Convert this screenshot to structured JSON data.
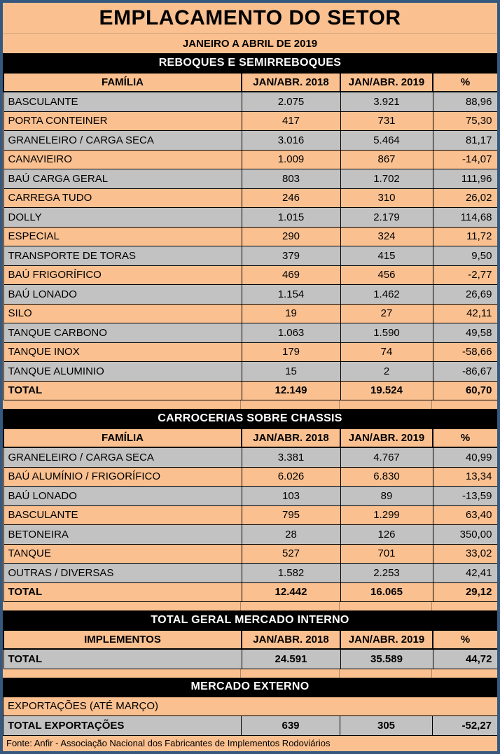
{
  "page": {
    "title": "EMPLACAMENTO DO SETOR",
    "subtitle": "JANEIRO A ABRIL DE 2019",
    "footer": "Fonte: Anfir - Associação Nacional dos Fabricantes de Implementos Rodoviários"
  },
  "colors": {
    "peach": "#FAC090",
    "gray": "#C2C2C2",
    "frame_border": "#35587F",
    "section_header_bg": "#000000",
    "section_header_text": "#FFFFFF",
    "grid_line": "#000000"
  },
  "sections": [
    {
      "title": "REBOQUES E SEMIRREBOQUES",
      "first_column_header": "FAMÍLIA",
      "col_headers": [
        "JAN/ABR. 2018",
        "JAN/ABR. 2019",
        "%"
      ],
      "rows": [
        [
          "BASCULANTE",
          "2.075",
          "3.921",
          "88,96"
        ],
        [
          "PORTA CONTEINER",
          "417",
          "731",
          "75,30"
        ],
        [
          "GRANELEIRO / CARGA SECA",
          "3.016",
          "5.464",
          "81,17"
        ],
        [
          "CANAVIEIRO",
          "1.009",
          "867",
          "-14,07"
        ],
        [
          "BAÚ CARGA GERAL",
          "803",
          "1.702",
          "111,96"
        ],
        [
          "CARREGA TUDO",
          "246",
          "310",
          "26,02"
        ],
        [
          "DOLLY",
          "1.015",
          "2.179",
          "114,68"
        ],
        [
          "ESPECIAL",
          "290",
          "324",
          "11,72"
        ],
        [
          "TRANSPORTE DE TORAS",
          "379",
          "415",
          "9,50"
        ],
        [
          "BAÚ FRIGORÍFICO",
          "469",
          "456",
          "-2,77"
        ],
        [
          "BAÚ LONADO",
          "1.154",
          "1.462",
          "26,69"
        ],
        [
          "SILO",
          "19",
          "27",
          "42,11"
        ],
        [
          "TANQUE CARBONO",
          "1.063",
          "1.590",
          "49,58"
        ],
        [
          "TANQUE INOX",
          "179",
          "74",
          "-58,66"
        ],
        [
          "TANQUE ALUMINIO",
          "15",
          "2",
          "-86,67"
        ]
      ],
      "total_row": [
        "TOTAL",
        "12.149",
        "19.524",
        "60,70"
      ]
    },
    {
      "title": "CARROCERIAS SOBRE CHASSIS",
      "first_column_header": "FAMÍLIA",
      "col_headers": [
        "JAN/ABR. 2018",
        "JAN/ABR. 2019",
        "%"
      ],
      "rows": [
        [
          "GRANELEIRO / CARGA SECA",
          "3.381",
          "4.767",
          "40,99"
        ],
        [
          "BAÚ ALUMÍNIO / FRIGORÍFICO",
          "6.026",
          "6.830",
          "13,34"
        ],
        [
          "BAÚ LONADO",
          "103",
          "89",
          "-13,59"
        ],
        [
          "BASCULANTE",
          "795",
          "1.299",
          "63,40"
        ],
        [
          "BETONEIRA",
          "28",
          "126",
          "350,00"
        ],
        [
          "TANQUE",
          "527",
          "701",
          "33,02"
        ],
        [
          "OUTRAS / DIVERSAS",
          "1.582",
          "2.253",
          "42,41"
        ]
      ],
      "total_row": [
        "TOTAL",
        "12.442",
        "16.065",
        "29,12"
      ]
    },
    {
      "title": "TOTAL GERAL MERCADO INTERNO",
      "first_column_header": "IMPLEMENTOS",
      "col_headers": [
        "JAN/ABR. 2018",
        "JAN/ABR. 2019",
        "%"
      ],
      "rows": [],
      "total_row": [
        "TOTAL",
        "24.591",
        "35.589",
        "44,72"
      ]
    },
    {
      "title": "MERCADO EXTERNO",
      "label_row": "EXPORTAÇÕES (ATÉ MARÇO)",
      "rows": [],
      "total_row": [
        "TOTAL EXPORTAÇÕES",
        "639",
        "305",
        "-52,27"
      ]
    }
  ]
}
